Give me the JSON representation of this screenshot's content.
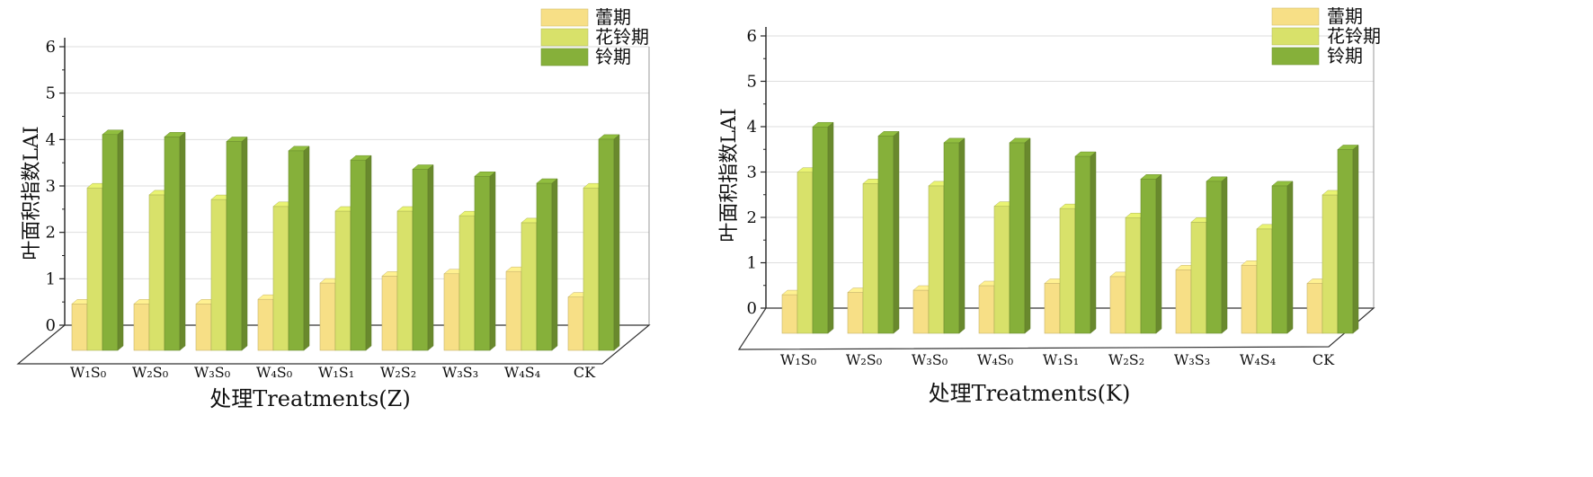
{
  "chart_data": [
    {
      "type": "bar",
      "categories": [
        "W₁S₀",
        "W₂S₀",
        "W₃S₀",
        "W₄S₀",
        "W₁S₁",
        "W₂S₂",
        "W₃S₃",
        "W₄S₄",
        "CK"
      ],
      "xlabel": "处理Treatments(Z)",
      "ylabel": "叶面积指数LAI",
      "ylim": [
        0,
        6
      ],
      "yticks": [
        "0",
        "1",
        "2",
        "3",
        "4",
        "5",
        "6"
      ],
      "legend_position": "top-right",
      "series": [
        {
          "name": "蕾期",
          "color": "#f7df86",
          "values": [
            1.0,
            1.0,
            1.0,
            1.1,
            1.45,
            1.6,
            1.65,
            1.7,
            1.15
          ]
        },
        {
          "name": "花铃期",
          "color": "#d8e16a",
          "values": [
            3.5,
            3.35,
            3.25,
            3.1,
            3.0,
            3.0,
            2.9,
            2.75,
            3.5
          ]
        },
        {
          "name": "铃期",
          "color": "#86b03a",
          "values": [
            4.65,
            4.6,
            4.5,
            4.3,
            4.1,
            3.9,
            3.75,
            3.6,
            4.55
          ]
        }
      ]
    },
    {
      "type": "bar",
      "categories": [
        "W₁S₀",
        "W₂S₀",
        "W₃S₀",
        "W₄S₀",
        "W₁S₁",
        "W₂S₂",
        "W₃S₃",
        "W₄S₄",
        "CK"
      ],
      "xlabel": "处理Treatments(K)",
      "ylabel": "叶面积指数LAI",
      "ylim": [
        0,
        6
      ],
      "yticks": [
        "0",
        "1",
        "2",
        "3",
        "4",
        "5",
        "6"
      ],
      "legend_position": "top-right",
      "series": [
        {
          "name": "蕾期",
          "color": "#f7df86",
          "values": [
            0.85,
            0.9,
            0.95,
            1.05,
            1.1,
            1.25,
            1.4,
            1.5,
            1.1
          ]
        },
        {
          "name": "花铃期",
          "color": "#d8e16a",
          "values": [
            3.55,
            3.3,
            3.25,
            2.8,
            2.75,
            2.55,
            2.45,
            2.3,
            3.05
          ]
        },
        {
          "name": "铃期",
          "color": "#86b03a",
          "values": [
            4.55,
            4.35,
            4.2,
            4.2,
            3.9,
            3.4,
            3.35,
            3.25,
            4.05
          ]
        }
      ]
    }
  ]
}
